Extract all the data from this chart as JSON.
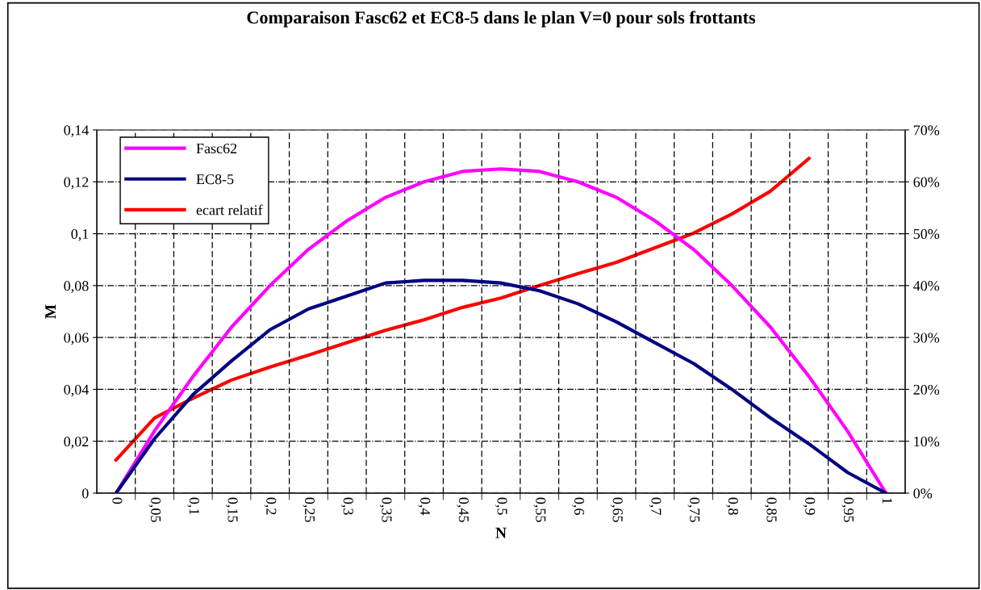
{
  "chart_data": {
    "type": "line",
    "title": "Comparaison Fasc62 et EC8-5 dans le plan V=0 pour sols frottants",
    "xlabel": "N",
    "ylabel": "M",
    "categories": [
      "0",
      "0,05",
      "0,1",
      "0,15",
      "0,2",
      "0,25",
      "0,3",
      "0,35",
      "0,4",
      "0,45",
      "0,5",
      "0,55",
      "0,6",
      "0,65",
      "0,7",
      "0,75",
      "0,8",
      "0,85",
      "0,9",
      "0,95",
      "1"
    ],
    "series": [
      {
        "name": "Fasc62",
        "color": "#ff00ff",
        "values": [
          0,
          0.024,
          0.045,
          0.064,
          0.08,
          0.094,
          0.105,
          0.114,
          0.12,
          0.124,
          0.125,
          0.124,
          0.12,
          0.114,
          0.105,
          0.094,
          0.08,
          0.064,
          0.045,
          0.024,
          0
        ]
      },
      {
        "name": "EC8-5",
        "color": "#000080",
        "values": [
          0,
          0.021,
          0.038,
          0.051,
          0.063,
          0.071,
          0.076,
          0.081,
          0.082,
          0.082,
          0.081,
          0.078,
          0.073,
          0.066,
          0.058,
          0.05,
          0.04,
          0.029,
          0.019,
          0.008,
          0
        ]
      },
      {
        "name": "ecart relatif",
        "color": "#ff0000",
        "axis": "y2",
        "values": [
          6.4,
          14.5,
          18.3,
          21.8,
          24.3,
          26.6,
          29,
          31.4,
          33.4,
          35.8,
          37.6,
          40,
          42.3,
          44.5,
          47.3,
          50.1,
          53.8,
          58.2,
          64.5,
          null,
          null
        ]
      }
    ],
    "ylim": [
      0,
      0.14
    ],
    "yticks": [
      0,
      {
        "value": 0.02,
        "label": "0,02"
      },
      {
        "value": 0.04,
        "label": "0,04"
      },
      {
        "value": 0.06,
        "label": "0,06"
      },
      {
        "value": 0.08,
        "label": "0,08"
      },
      {
        "value": 0.1,
        "label": "0,1"
      },
      {
        "value": 0.12,
        "label": "0,12"
      },
      {
        "value": 0.14,
        "label": "0,14"
      }
    ],
    "y2lim": [
      0,
      70
    ],
    "y2ticks": [
      {
        "value": 0,
        "label": "0%"
      },
      {
        "value": 10,
        "label": "10%"
      },
      {
        "value": 20,
        "label": "20%"
      },
      {
        "value": 30,
        "label": "30%"
      },
      {
        "value": 40,
        "label": "40%"
      },
      {
        "value": 50,
        "label": "50%"
      },
      {
        "value": 60,
        "label": "60%"
      },
      {
        "value": 70,
        "label": "70%"
      }
    ],
    "grid": true,
    "legend": "top left",
    "marker": "none",
    "line_style": "solid"
  }
}
